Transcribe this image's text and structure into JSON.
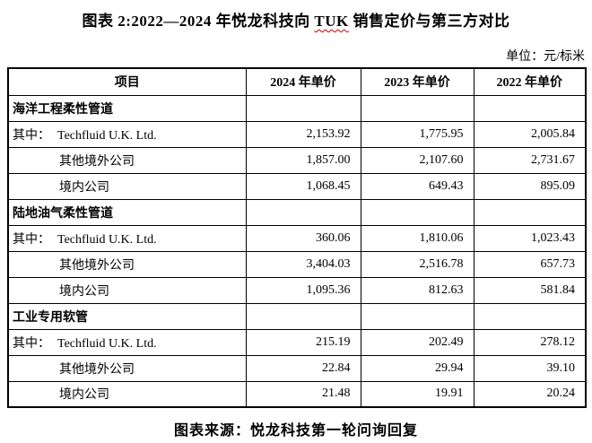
{
  "title": {
    "prefix": "图表 2:2022—2024 年悦龙科技向 ",
    "highlight": "TUK",
    "suffix": " 销售定价与第三方对比"
  },
  "unit_label": "单位：元/标米",
  "table": {
    "headers": [
      "项目",
      "2024 年单价",
      "2023 年单价",
      "2022 年单价"
    ],
    "section1": {
      "label": "海洋工程柔性管道",
      "rows": [
        {
          "prefix": "其中：",
          "label": "Techfluid U.K. Ltd.",
          "v2024": "2,153.92",
          "v2023": "1,775.95",
          "v2022": "2,005.84"
        },
        {
          "prefix": "",
          "label": "其他境外公司",
          "v2024": "1,857.00",
          "v2023": "2,107.60",
          "v2022": "2,731.67"
        },
        {
          "prefix": "",
          "label": "境内公司",
          "v2024": "1,068.45",
          "v2023": "649.43",
          "v2022": "895.09"
        }
      ]
    },
    "section2": {
      "label": "陆地油气柔性管道",
      "rows": [
        {
          "prefix": "其中：",
          "label": "Techfluid U.K. Ltd.",
          "v2024": "360.06",
          "v2023": "1,810.06",
          "v2022": "1,023.43"
        },
        {
          "prefix": "",
          "label": "其他境外公司",
          "v2024": "3,404.03",
          "v2023": "2,516.78",
          "v2022": "657.73"
        },
        {
          "prefix": "",
          "label": "境内公司",
          "v2024": "1,095.36",
          "v2023": "812.63",
          "v2022": "581.84"
        }
      ]
    },
    "section3": {
      "label": "工业专用软管",
      "rows": [
        {
          "prefix": "其中：",
          "label": "Techfluid U.K. Ltd.",
          "v2024": "215.19",
          "v2023": "202.49",
          "v2022": "278.12"
        },
        {
          "prefix": "",
          "label": "其他境外公司",
          "v2024": "22.84",
          "v2023": "29.94",
          "v2022": "39.10"
        },
        {
          "prefix": "",
          "label": "境内公司",
          "v2024": "21.48",
          "v2023": "19.91",
          "v2022": "20.24"
        }
      ]
    }
  },
  "source_label": "图表来源：悦龙科技第一轮问询回复"
}
